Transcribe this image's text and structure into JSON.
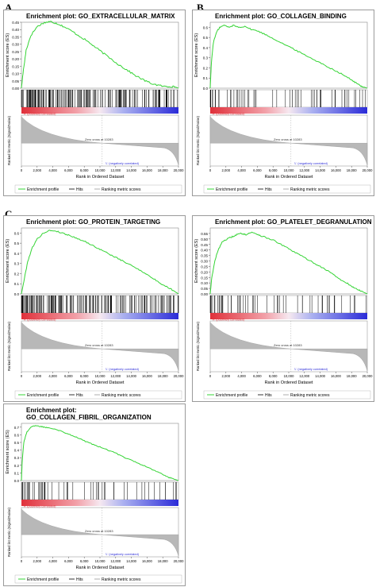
{
  "panel_letters": [
    "A",
    "B",
    "C"
  ],
  "common": {
    "x_axis_label": "Rank in Ordered Dataset",
    "y_axis_label_es": "Enrichment score (ES)",
    "y_axis_label_metric": "Ranked list metric (Signal2Noise)",
    "positively_correlated": "'H' (positively correlated)",
    "negatively_correlated": "'L' (negatively correlated)",
    "zero_cross": "Zero cross at 10283",
    "legend": [
      "Enrichment profile",
      "Hits",
      "Ranking metric scores"
    ],
    "x_ticks": [
      "0",
      "2,000",
      "4,000",
      "6,000",
      "8,000",
      "10,000",
      "12,000",
      "14,000",
      "16,000",
      "18,000",
      "20,000"
    ],
    "colors": {
      "profile": "#35d435",
      "hits": "#000000",
      "metric": "#b8b8b8",
      "positive": "#e0303a",
      "negative": "#2b2bd8"
    }
  },
  "chart_data": [
    {
      "panel": "A",
      "type": "line",
      "title_lines": [
        "Enrichment plot: GO_EXTRACELLULAR_MATRIX"
      ],
      "ylabel": "Enrichment score (ES)",
      "xlabel": "Rank in Ordered Dataset",
      "ylim": [
        0,
        0.45
      ],
      "xlim": [
        0,
        20000
      ],
      "y_ticks": [
        "0.45",
        "0.40",
        "0.35",
        "0.30",
        "0.25",
        "0.20",
        "0.15",
        "0.10",
        "0.05",
        "0.00"
      ],
      "es_curve": {
        "x": [
          0,
          200,
          600,
          1200,
          2000,
          2800,
          3600,
          4000,
          4600,
          5400,
          6400,
          7400,
          8400,
          9400,
          10400,
          11400,
          12400,
          13400,
          14400,
          15400,
          16400,
          17400,
          18400,
          19000,
          19600,
          20000
        ],
        "y": [
          0.0,
          0.1,
          0.26,
          0.36,
          0.42,
          0.445,
          0.455,
          0.45,
          0.44,
          0.42,
          0.39,
          0.355,
          0.32,
          0.28,
          0.24,
          0.2,
          0.16,
          0.125,
          0.09,
          0.06,
          0.035,
          0.02,
          0.01,
          0.012,
          0.008,
          0.0
        ]
      },
      "hit_density": "dense"
    },
    {
      "panel": "B",
      "type": "line",
      "title_lines": [
        "Enrichment plot: GO_COLLAGEN_BINDING"
      ],
      "ylabel": "Enrichment score (ES)",
      "xlabel": "Rank in Ordered Dataset",
      "ylim": [
        0,
        0.65
      ],
      "xlim": [
        0,
        20000
      ],
      "y_ticks": [
        "0.6",
        "0.5",
        "0.4",
        "0.3",
        "0.2",
        "0.1",
        "0.0"
      ],
      "es_curve": {
        "x": [
          0,
          150,
          400,
          800,
          1200,
          1800,
          2400,
          3000,
          3600,
          4400,
          5200,
          6000,
          7000,
          8000,
          9000,
          10000,
          11000,
          12000,
          13000,
          14000,
          15000,
          16000,
          17000,
          18000,
          18600,
          19200,
          19600,
          20000
        ],
        "y": [
          0.0,
          0.25,
          0.45,
          0.55,
          0.6,
          0.62,
          0.6,
          0.62,
          0.6,
          0.61,
          0.58,
          0.565,
          0.53,
          0.49,
          0.45,
          0.41,
          0.37,
          0.33,
          0.29,
          0.25,
          0.21,
          0.17,
          0.13,
          0.08,
          0.05,
          0.02,
          0.01,
          0.0
        ]
      },
      "hit_density": "sparse"
    },
    {
      "panel": "C1",
      "type": "line",
      "title_lines": [
        "Enrichment plot: GO_PROTEIN_TARGETING"
      ],
      "ylabel": "Enrichment score (ES)",
      "xlabel": "Rank in Ordered Dataset",
      "ylim": [
        0,
        0.65
      ],
      "xlim": [
        0,
        20000
      ],
      "y_ticks": [
        "0.6",
        "0.5",
        "0.4",
        "0.3",
        "0.2",
        "0.1",
        "0.0"
      ],
      "es_curve": {
        "x": [
          0,
          300,
          800,
          1400,
          2000,
          2800,
          3600,
          4400,
          5200,
          6000,
          7000,
          8000,
          9000,
          10000,
          11000,
          12000,
          13000,
          14000,
          15000,
          16000,
          17000,
          18000,
          19000,
          19600,
          20000
        ],
        "y": [
          0.0,
          0.12,
          0.32,
          0.46,
          0.54,
          0.6,
          0.625,
          0.62,
          0.6,
          0.58,
          0.55,
          0.52,
          0.48,
          0.44,
          0.4,
          0.36,
          0.32,
          0.28,
          0.24,
          0.19,
          0.14,
          0.09,
          0.05,
          0.02,
          0.0
        ]
      },
      "hit_density": "dense"
    },
    {
      "panel": "C2",
      "type": "line",
      "title_lines": [
        "Enrichment plot: GO_PLATELET_DEGRANULATION"
      ],
      "ylabel": "Enrichment score (ES)",
      "xlabel": "Rank in Ordered Dataset",
      "ylim": [
        0,
        0.6
      ],
      "xlim": [
        0,
        20000
      ],
      "y_ticks": [
        "0.55",
        "0.50",
        "0.45",
        "0.40",
        "0.35",
        "0.30",
        "0.25",
        "0.20",
        "0.15",
        "0.10",
        "0.05",
        "0.00"
      ],
      "es_curve": {
        "x": [
          0,
          200,
          600,
          1000,
          1600,
          2200,
          2800,
          3400,
          4000,
          4600,
          5200,
          5800,
          6400,
          7200,
          8000,
          9000,
          10000,
          11000,
          12000,
          13000,
          14000,
          15000,
          16000,
          17000,
          17600,
          18200,
          18800,
          19400,
          20000
        ],
        "y": [
          0.0,
          0.15,
          0.3,
          0.4,
          0.48,
          0.5,
          0.52,
          0.54,
          0.55,
          0.54,
          0.56,
          0.55,
          0.53,
          0.51,
          0.49,
          0.45,
          0.41,
          0.37,
          0.33,
          0.29,
          0.25,
          0.21,
          0.16,
          0.11,
          0.09,
          0.06,
          0.04,
          0.02,
          0.0
        ]
      },
      "hit_density": "sparse"
    },
    {
      "panel": "C3",
      "type": "line",
      "title_lines": [
        "Enrichment plot:",
        "GO_COLLAGEN_FIBRIL_ORGANIZATION"
      ],
      "ylabel": "Enrichment score (ES)",
      "xlabel": "Rank in Ordered Dataset",
      "ylim": [
        0,
        0.75
      ],
      "xlim": [
        0,
        20000
      ],
      "y_ticks": [
        "0.7",
        "0.6",
        "0.5",
        "0.4",
        "0.3",
        "0.2",
        "0.1",
        "0.0"
      ],
      "es_curve": {
        "x": [
          0,
          100,
          300,
          700,
          1200,
          1800,
          2400,
          3000,
          3600,
          4200,
          5000,
          6000,
          7000,
          8000,
          9000,
          10000,
          11000,
          12000,
          13000,
          14000,
          15000,
          16000,
          17000,
          18000,
          18800,
          19400,
          20000
        ],
        "y": [
          0.0,
          0.25,
          0.5,
          0.64,
          0.7,
          0.72,
          0.71,
          0.7,
          0.69,
          0.68,
          0.65,
          0.61,
          0.57,
          0.52,
          0.48,
          0.44,
          0.4,
          0.36,
          0.31,
          0.27,
          0.22,
          0.18,
          0.13,
          0.08,
          0.04,
          0.02,
          0.0
        ]
      },
      "hit_density": "sparse"
    }
  ]
}
